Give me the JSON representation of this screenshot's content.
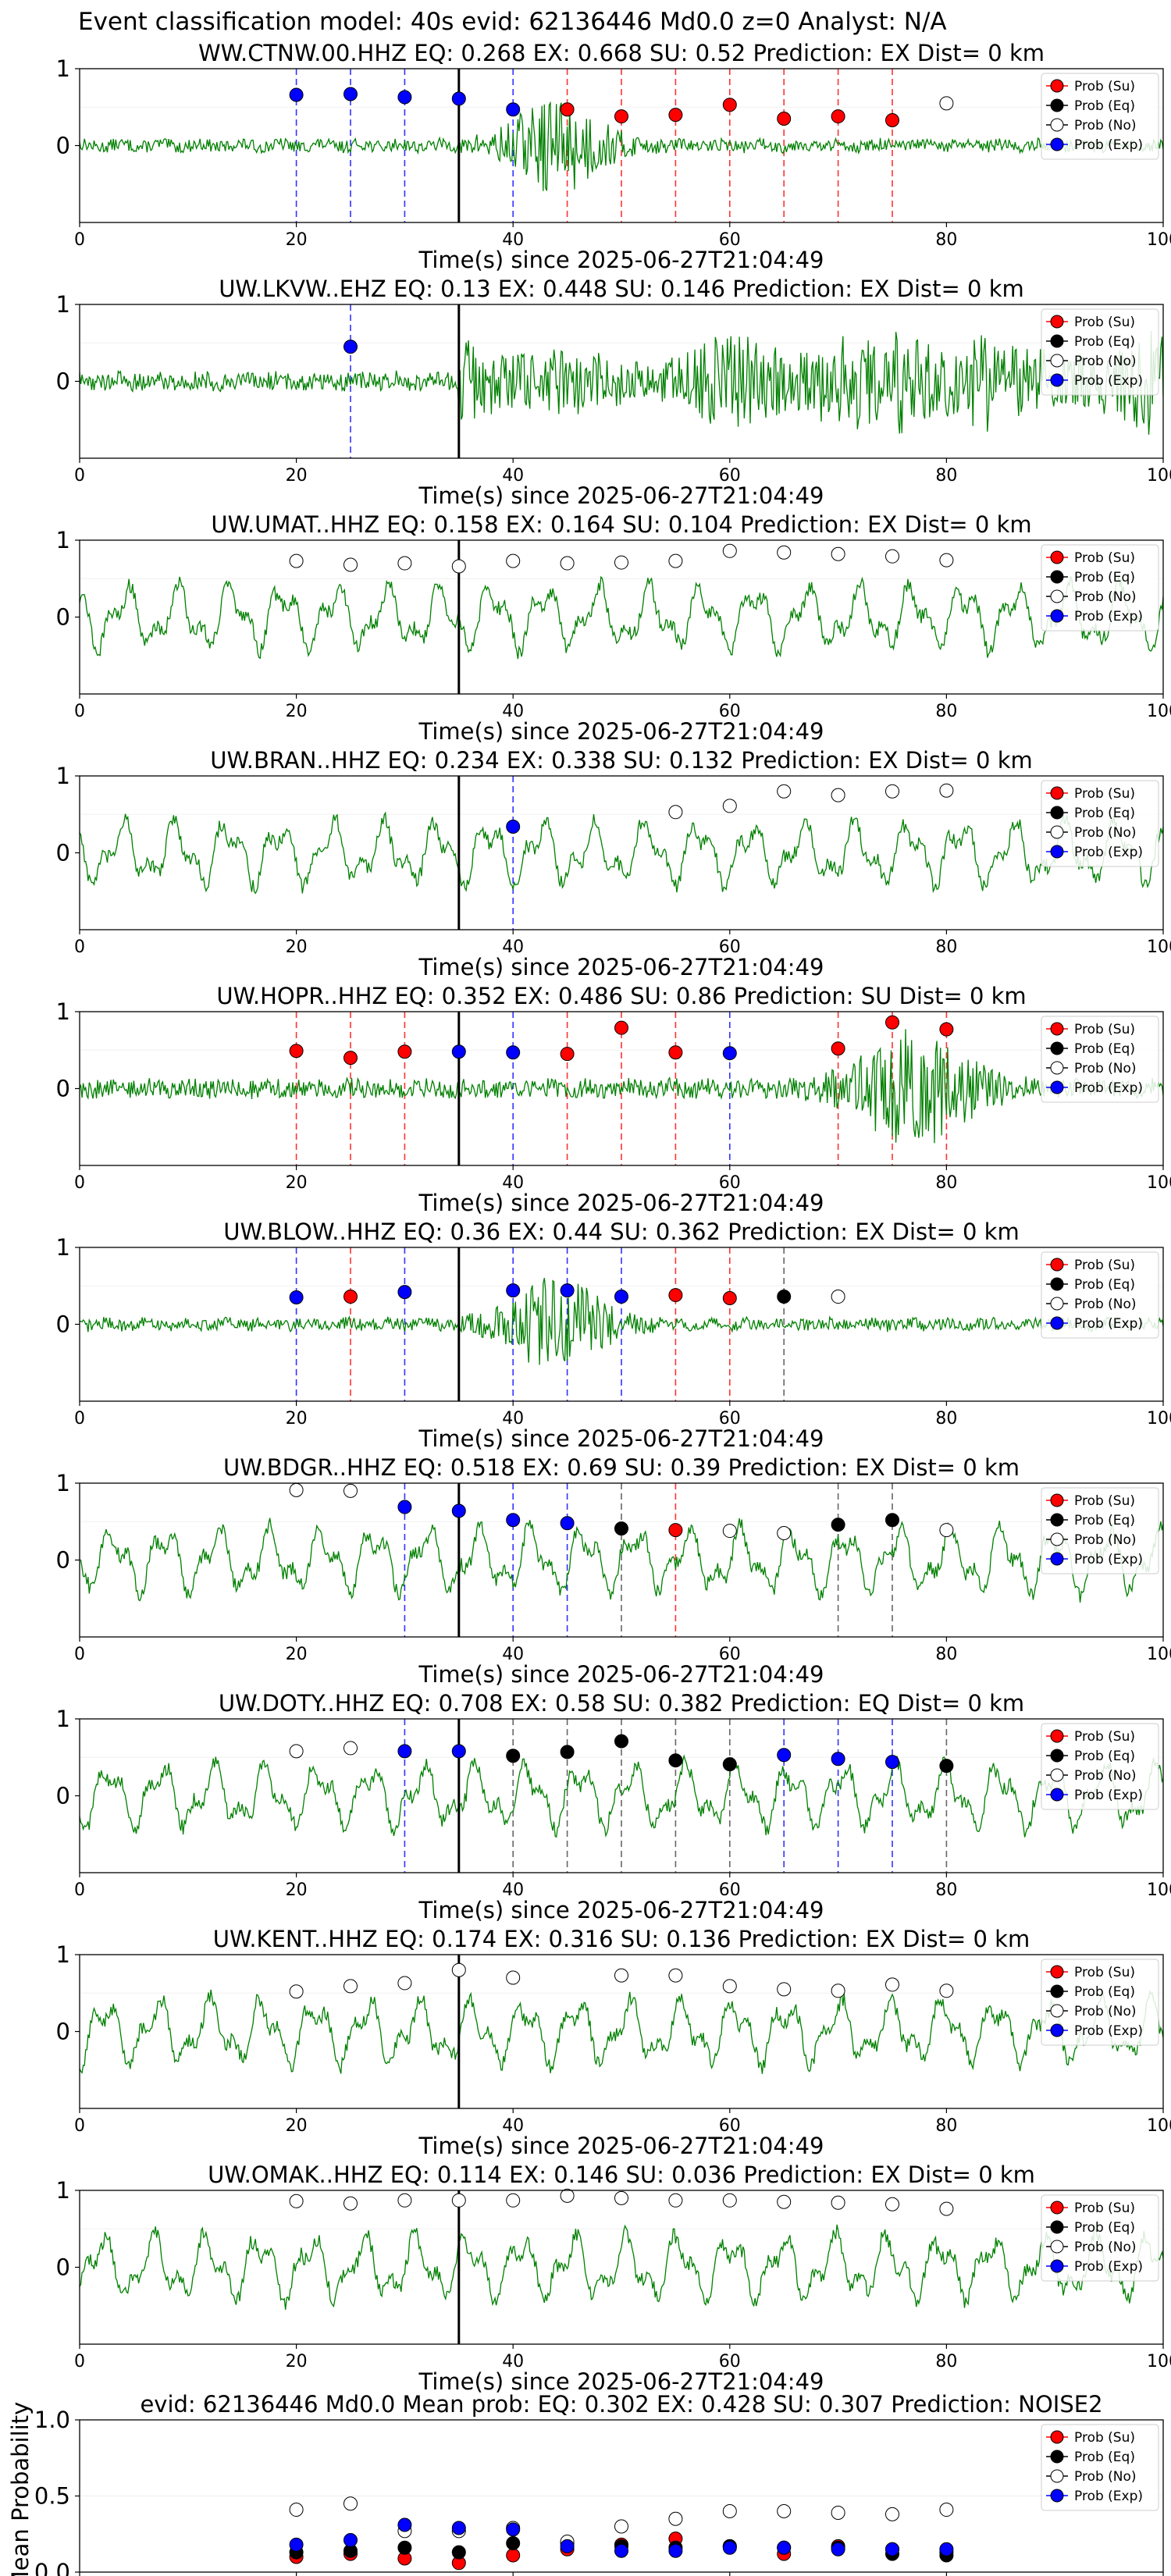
{
  "figure_title": "Event classification model: 40s evid: 62136446 Md0.0 z=0 Analyst: N/A",
  "legend_labels": [
    "Prob (Su)",
    "Prob (Eq)",
    "Prob (No)",
    "Prob (Exp)"
  ],
  "colors": {
    "waveform": "#008000",
    "su": "#ff0000",
    "eq": "#000000",
    "no": "#ffffff",
    "exp": "#0000ff",
    "pick_line": "#000000"
  },
  "chart_data": [
    {
      "type": "line",
      "station": "WW.CTNW.00.HHZ",
      "title": "WW.CTNW.00.HHZ   EQ: 0.268   EX: 0.668   SU: 0.52   Prediction: EX    Dist= 0 km",
      "xlabel": "Time(s) since 2025-06-27T21:04:49",
      "xlim": [
        0,
        100
      ],
      "ylim": [
        -1,
        1
      ],
      "xticks": [
        0,
        20,
        40,
        60,
        80,
        100
      ],
      "yticks": [
        0,
        1
      ],
      "pick_time": 35,
      "waveform_style": "burst",
      "markers": [
        {
          "t": 20,
          "p": 0.66,
          "cls": "exp"
        },
        {
          "t": 25,
          "p": 0.67,
          "cls": "exp"
        },
        {
          "t": 30,
          "p": 0.63,
          "cls": "exp"
        },
        {
          "t": 35,
          "p": 0.61,
          "cls": "exp"
        },
        {
          "t": 40,
          "p": 0.47,
          "cls": "exp"
        },
        {
          "t": 45,
          "p": 0.47,
          "cls": "su"
        },
        {
          "t": 50,
          "p": 0.38,
          "cls": "su"
        },
        {
          "t": 55,
          "p": 0.4,
          "cls": "su"
        },
        {
          "t": 60,
          "p": 0.53,
          "cls": "su"
        },
        {
          "t": 65,
          "p": 0.35,
          "cls": "su"
        },
        {
          "t": 70,
          "p": 0.38,
          "cls": "su"
        },
        {
          "t": 75,
          "p": 0.33,
          "cls": "su"
        },
        {
          "t": 80,
          "p": 0.55,
          "cls": "no"
        }
      ]
    },
    {
      "type": "line",
      "station": "UW.LKVW..EHZ",
      "title": "UW.LKVW..EHZ   EQ: 0.13  EX: 0.448  SU: 0.146   Prediction: EX    Dist= 0 km",
      "xlabel": "Time(s) since 2025-06-27T21:04:49",
      "xlim": [
        0,
        100
      ],
      "ylim": [
        -1,
        1
      ],
      "xticks": [
        0,
        20,
        40,
        60,
        80,
        100
      ],
      "yticks": [
        0,
        1
      ],
      "pick_time": 35,
      "waveform_style": "sustained",
      "markers": [
        {
          "t": 25,
          "p": 0.45,
          "cls": "exp"
        }
      ]
    },
    {
      "type": "line",
      "station": "UW.UMAT..HHZ",
      "title": "UW.UMAT..HHZ   EQ: 0.158  EX: 0.164  SU: 0.104   Prediction: EX    Dist= 0 km",
      "xlabel": "Time(s) since 2025-06-27T21:04:49",
      "xlim": [
        0,
        100
      ],
      "ylim": [
        -1,
        1
      ],
      "xticks": [
        0,
        20,
        40,
        60,
        80,
        100
      ],
      "yticks": [
        0,
        1
      ],
      "pick_time": 35,
      "waveform_style": "noise",
      "markers": [
        {
          "t": 20,
          "p": 0.73,
          "cls": "no"
        },
        {
          "t": 25,
          "p": 0.68,
          "cls": "no"
        },
        {
          "t": 30,
          "p": 0.7,
          "cls": "no"
        },
        {
          "t": 35,
          "p": 0.66,
          "cls": "no"
        },
        {
          "t": 40,
          "p": 0.73,
          "cls": "no"
        },
        {
          "t": 45,
          "p": 0.7,
          "cls": "no"
        },
        {
          "t": 50,
          "p": 0.71,
          "cls": "no"
        },
        {
          "t": 55,
          "p": 0.73,
          "cls": "no"
        },
        {
          "t": 60,
          "p": 0.86,
          "cls": "no"
        },
        {
          "t": 65,
          "p": 0.84,
          "cls": "no"
        },
        {
          "t": 70,
          "p": 0.82,
          "cls": "no"
        },
        {
          "t": 75,
          "p": 0.79,
          "cls": "no"
        },
        {
          "t": 80,
          "p": 0.74,
          "cls": "no"
        }
      ]
    },
    {
      "type": "line",
      "station": "UW.BRAN..HHZ",
      "title": "UW.BRAN..HHZ   EQ: 0.234  EX: 0.338  SU: 0.132   Prediction: EX    Dist= 0 km",
      "xlabel": "Time(s) since 2025-06-27T21:04:49",
      "xlim": [
        0,
        100
      ],
      "ylim": [
        -1,
        1
      ],
      "xticks": [
        0,
        20,
        40,
        60,
        80,
        100
      ],
      "yticks": [
        0,
        1
      ],
      "pick_time": 35,
      "waveform_style": "noise",
      "markers": [
        {
          "t": 40,
          "p": 0.34,
          "cls": "exp"
        },
        {
          "t": 55,
          "p": 0.53,
          "cls": "no"
        },
        {
          "t": 60,
          "p": 0.61,
          "cls": "no"
        },
        {
          "t": 65,
          "p": 0.8,
          "cls": "no"
        },
        {
          "t": 70,
          "p": 0.75,
          "cls": "no"
        },
        {
          "t": 75,
          "p": 0.8,
          "cls": "no"
        },
        {
          "t": 80,
          "p": 0.81,
          "cls": "no"
        }
      ]
    },
    {
      "type": "line",
      "station": "UW.HOPR..HHZ",
      "title": "UW.HOPR..HHZ   EQ: 0.352  EX: 0.486  SU: 0.86   Prediction: SU    Dist= 0 km",
      "xlabel": "Time(s) since 2025-06-27T21:04:49",
      "xlim": [
        0,
        100
      ],
      "ylim": [
        -1,
        1
      ],
      "xticks": [
        0,
        20,
        40,
        60,
        80,
        100
      ],
      "yticks": [
        0,
        1
      ],
      "pick_time": 35,
      "waveform_style": "late",
      "markers": [
        {
          "t": 20,
          "p": 0.49,
          "cls": "su"
        },
        {
          "t": 25,
          "p": 0.4,
          "cls": "su"
        },
        {
          "t": 30,
          "p": 0.48,
          "cls": "su"
        },
        {
          "t": 35,
          "p": 0.48,
          "cls": "exp"
        },
        {
          "t": 40,
          "p": 0.47,
          "cls": "exp"
        },
        {
          "t": 45,
          "p": 0.45,
          "cls": "su"
        },
        {
          "t": 50,
          "p": 0.79,
          "cls": "su"
        },
        {
          "t": 55,
          "p": 0.47,
          "cls": "su"
        },
        {
          "t": 60,
          "p": 0.46,
          "cls": "exp"
        },
        {
          "t": 70,
          "p": 0.52,
          "cls": "su"
        },
        {
          "t": 75,
          "p": 0.86,
          "cls": "su"
        },
        {
          "t": 80,
          "p": 0.77,
          "cls": "su"
        }
      ]
    },
    {
      "type": "line",
      "station": "UW.BLOW..HHZ",
      "title": "UW.BLOW..HHZ   EQ: 0.36  EX: 0.44  SU: 0.362   Prediction: EX    Dist= 0 km",
      "xlabel": "Time(s) since 2025-06-27T21:04:49",
      "xlim": [
        0,
        100
      ],
      "ylim": [
        -1,
        1
      ],
      "xticks": [
        0,
        20,
        40,
        60,
        80,
        100
      ],
      "yticks": [
        0,
        1
      ],
      "pick_time": 35,
      "waveform_style": "burst",
      "markers": [
        {
          "t": 20,
          "p": 0.35,
          "cls": "exp"
        },
        {
          "t": 25,
          "p": 0.36,
          "cls": "su"
        },
        {
          "t": 30,
          "p": 0.42,
          "cls": "exp"
        },
        {
          "t": 40,
          "p": 0.44,
          "cls": "exp"
        },
        {
          "t": 45,
          "p": 0.44,
          "cls": "exp"
        },
        {
          "t": 50,
          "p": 0.36,
          "cls": "exp"
        },
        {
          "t": 55,
          "p": 0.38,
          "cls": "su"
        },
        {
          "t": 60,
          "p": 0.34,
          "cls": "su"
        },
        {
          "t": 65,
          "p": 0.36,
          "cls": "eq"
        },
        {
          "t": 70,
          "p": 0.36,
          "cls": "no"
        }
      ]
    },
    {
      "type": "line",
      "station": "UW.BDGR..HHZ",
      "title": "UW.BDGR..HHZ   EQ: 0.518  EX: 0.69  SU: 0.39   Prediction: EX    Dist= 0 km",
      "xlabel": "Time(s) since 2025-06-27T21:04:49",
      "xlim": [
        0,
        100
      ],
      "ylim": [
        -1,
        1
      ],
      "xticks": [
        0,
        20,
        40,
        60,
        80,
        100
      ],
      "yticks": [
        0,
        1
      ],
      "pick_time": 35,
      "waveform_style": "noise",
      "markers": [
        {
          "t": 20,
          "p": 0.91,
          "cls": "no"
        },
        {
          "t": 25,
          "p": 0.9,
          "cls": "no"
        },
        {
          "t": 30,
          "p": 0.69,
          "cls": "exp"
        },
        {
          "t": 35,
          "p": 0.64,
          "cls": "exp"
        },
        {
          "t": 40,
          "p": 0.52,
          "cls": "exp"
        },
        {
          "t": 45,
          "p": 0.48,
          "cls": "exp"
        },
        {
          "t": 50,
          "p": 0.41,
          "cls": "eq"
        },
        {
          "t": 55,
          "p": 0.39,
          "cls": "su"
        },
        {
          "t": 60,
          "p": 0.38,
          "cls": "no"
        },
        {
          "t": 65,
          "p": 0.35,
          "cls": "no"
        },
        {
          "t": 70,
          "p": 0.46,
          "cls": "eq"
        },
        {
          "t": 75,
          "p": 0.52,
          "cls": "eq"
        },
        {
          "t": 80,
          "p": 0.39,
          "cls": "no"
        }
      ]
    },
    {
      "type": "line",
      "station": "UW.DOTY..HHZ",
      "title": "UW.DOTY..HHZ   EQ: 0.708  EX: 0.58  SU: 0.382   Prediction: EQ    Dist= 0 km",
      "xlabel": "Time(s) since 2025-06-27T21:04:49",
      "xlim": [
        0,
        100
      ],
      "ylim": [
        -1,
        1
      ],
      "xticks": [
        0,
        20,
        40,
        60,
        80,
        100
      ],
      "yticks": [
        0,
        1
      ],
      "pick_time": 35,
      "waveform_style": "noise",
      "markers": [
        {
          "t": 20,
          "p": 0.58,
          "cls": "no"
        },
        {
          "t": 25,
          "p": 0.62,
          "cls": "no"
        },
        {
          "t": 30,
          "p": 0.58,
          "cls": "exp"
        },
        {
          "t": 35,
          "p": 0.58,
          "cls": "exp"
        },
        {
          "t": 40,
          "p": 0.52,
          "cls": "eq"
        },
        {
          "t": 45,
          "p": 0.57,
          "cls": "eq"
        },
        {
          "t": 50,
          "p": 0.71,
          "cls": "eq"
        },
        {
          "t": 55,
          "p": 0.46,
          "cls": "eq"
        },
        {
          "t": 60,
          "p": 0.41,
          "cls": "eq"
        },
        {
          "t": 65,
          "p": 0.53,
          "cls": "exp"
        },
        {
          "t": 70,
          "p": 0.48,
          "cls": "exp"
        },
        {
          "t": 75,
          "p": 0.44,
          "cls": "exp"
        },
        {
          "t": 80,
          "p": 0.39,
          "cls": "eq"
        }
      ]
    },
    {
      "type": "line",
      "station": "UW.KENT..HHZ",
      "title": "UW.KENT..HHZ   EQ: 0.174  EX: 0.316  SU: 0.136   Prediction: EX    Dist= 0 km",
      "xlabel": "Time(s) since 2025-06-27T21:04:49",
      "xlim": [
        0,
        100
      ],
      "ylim": [
        -1,
        1
      ],
      "xticks": [
        0,
        20,
        40,
        60,
        80,
        100
      ],
      "yticks": [
        0,
        1
      ],
      "pick_time": 35,
      "waveform_style": "noise",
      "markers": [
        {
          "t": 20,
          "p": 0.52,
          "cls": "no"
        },
        {
          "t": 25,
          "p": 0.59,
          "cls": "no"
        },
        {
          "t": 30,
          "p": 0.63,
          "cls": "no"
        },
        {
          "t": 35,
          "p": 0.8,
          "cls": "no"
        },
        {
          "t": 40,
          "p": 0.7,
          "cls": "no"
        },
        {
          "t": 50,
          "p": 0.73,
          "cls": "no"
        },
        {
          "t": 55,
          "p": 0.73,
          "cls": "no"
        },
        {
          "t": 60,
          "p": 0.59,
          "cls": "no"
        },
        {
          "t": 65,
          "p": 0.55,
          "cls": "no"
        },
        {
          "t": 70,
          "p": 0.53,
          "cls": "no"
        },
        {
          "t": 75,
          "p": 0.61,
          "cls": "no"
        },
        {
          "t": 80,
          "p": 0.53,
          "cls": "no"
        }
      ]
    },
    {
      "type": "line",
      "station": "UW.OMAK..HHZ",
      "title": "UW.OMAK..HHZ   EQ: 0.114  EX: 0.146  SU: 0.036   Prediction: EX    Dist= 0 km",
      "xlabel": "Time(s) since 2025-06-27T21:04:49",
      "xlim": [
        0,
        100
      ],
      "ylim": [
        -1,
        1
      ],
      "xticks": [
        0,
        20,
        40,
        60,
        80,
        100
      ],
      "yticks": [
        0,
        1
      ],
      "pick_time": 35,
      "waveform_style": "noise",
      "markers": [
        {
          "t": 20,
          "p": 0.86,
          "cls": "no"
        },
        {
          "t": 25,
          "p": 0.83,
          "cls": "no"
        },
        {
          "t": 30,
          "p": 0.87,
          "cls": "no"
        },
        {
          "t": 35,
          "p": 0.87,
          "cls": "no"
        },
        {
          "t": 40,
          "p": 0.87,
          "cls": "no"
        },
        {
          "t": 45,
          "p": 0.93,
          "cls": "no"
        },
        {
          "t": 50,
          "p": 0.9,
          "cls": "no"
        },
        {
          "t": 55,
          "p": 0.87,
          "cls": "no"
        },
        {
          "t": 60,
          "p": 0.87,
          "cls": "no"
        },
        {
          "t": 65,
          "p": 0.85,
          "cls": "no"
        },
        {
          "t": 70,
          "p": 0.84,
          "cls": "no"
        },
        {
          "t": 75,
          "p": 0.82,
          "cls": "no"
        },
        {
          "t": 80,
          "p": 0.76,
          "cls": "no"
        }
      ]
    },
    {
      "type": "scatter",
      "title": "evid: 62136446   Md0.0    Mean prob:   EQ: 0.302   EX: 0.428   SU: 0.307   Prediction: NOISE2",
      "ylabel": "Mean Probability",
      "xlim": [
        0,
        100
      ],
      "ylim": [
        0,
        1
      ],
      "xticks": [
        0,
        20,
        40,
        60,
        80,
        100
      ],
      "yticks": [
        0.0,
        0.5,
        1.0
      ],
      "ytick_labels": [
        "0.0",
        "0.5",
        "1.0"
      ],
      "series": [
        {
          "name": "Prob (Su)",
          "cls": "su",
          "x": [
            20,
            25,
            30,
            35,
            40,
            45,
            50,
            55,
            60,
            65,
            70,
            75,
            80
          ],
          "y": [
            0.1,
            0.12,
            0.09,
            0.06,
            0.11,
            0.15,
            0.18,
            0.22,
            0.17,
            0.12,
            0.17,
            0.15,
            0.13
          ]
        },
        {
          "name": "Prob (Eq)",
          "cls": "eq",
          "x": [
            20,
            25,
            30,
            35,
            40,
            45,
            50,
            55,
            60,
            65,
            70,
            75,
            80
          ],
          "y": [
            0.13,
            0.14,
            0.16,
            0.13,
            0.19,
            0.19,
            0.17,
            0.16,
            0.17,
            0.16,
            0.16,
            0.12,
            0.11
          ]
        },
        {
          "name": "Prob (No)",
          "cls": "no",
          "x": [
            20,
            25,
            30,
            35,
            40,
            45,
            50,
            55,
            60,
            65,
            70,
            75,
            80
          ],
          "y": [
            0.41,
            0.45,
            0.27,
            0.27,
            0.29,
            0.2,
            0.3,
            0.35,
            0.4,
            0.4,
            0.39,
            0.38,
            0.41
          ]
        },
        {
          "name": "Prob (Exp)",
          "cls": "exp",
          "x": [
            20,
            25,
            30,
            35,
            40,
            45,
            50,
            55,
            60,
            65,
            70,
            75,
            80
          ],
          "y": [
            0.18,
            0.21,
            0.31,
            0.29,
            0.28,
            0.17,
            0.14,
            0.14,
            0.16,
            0.16,
            0.15,
            0.15,
            0.15
          ]
        }
      ]
    }
  ]
}
